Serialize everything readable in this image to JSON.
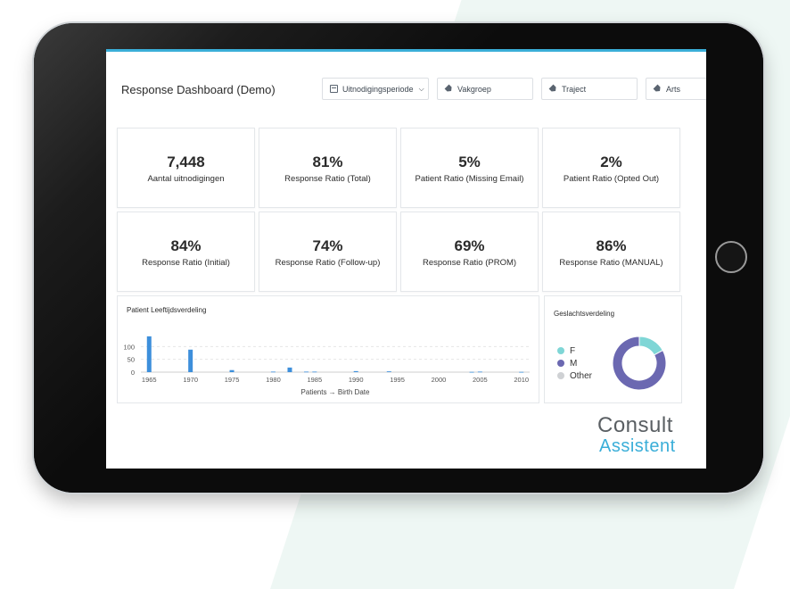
{
  "header": {
    "title": "Response Dashboard (Demo)"
  },
  "filters": [
    {
      "label": "Uitnodigingsperiode",
      "icon": "calendar-icon"
    },
    {
      "label": "Vakgroep",
      "icon": "tag-icon"
    },
    {
      "label": "Traject",
      "icon": "tag-icon"
    },
    {
      "label": "Arts",
      "icon": "tag-icon"
    }
  ],
  "kpis": [
    {
      "value": "7,448",
      "label": "Aantal uitnodigingen"
    },
    {
      "value": "81%",
      "label": "Response Ratio (Total)"
    },
    {
      "value": "5%",
      "label": "Patient Ratio (Missing Email)"
    },
    {
      "value": "2%",
      "label": "Patient Ratio (Opted Out)"
    },
    {
      "value": "84%",
      "label": "Response Ratio (Initial)"
    },
    {
      "value": "74%",
      "label": "Response Ratio (Follow-up)"
    },
    {
      "value": "69%",
      "label": "Response Ratio (PROM)"
    },
    {
      "value": "86%",
      "label": "Response Ratio (MANUAL)"
    }
  ],
  "chart_data": [
    {
      "type": "bar",
      "title": "Patient Leeftijdsverdeling",
      "xlabel": "Patients → Birth Date",
      "ylabel": "",
      "x": [
        1965,
        1970,
        1975,
        1980,
        1982,
        1984,
        1985,
        1990,
        1994,
        2004,
        2005,
        2010
      ],
      "values": [
        140,
        88,
        8,
        2,
        18,
        2,
        2,
        4,
        3,
        1,
        2,
        1
      ],
      "xticks": [
        1965,
        1970,
        1975,
        1980,
        1985,
        1990,
        1995,
        2000,
        2005,
        2010
      ],
      "yticks": [
        0,
        50,
        100
      ],
      "xlim": [
        1964,
        2011
      ],
      "ylim": [
        0,
        150
      ],
      "grid": true,
      "color": "#3d8fdb"
    },
    {
      "type": "pie",
      "title": "Geslachtsverdeling",
      "categories": [
        "F",
        "M",
        "Other"
      ],
      "values": [
        17,
        83,
        0
      ],
      "colors": [
        "#7fd6d6",
        "#6b68b1",
        "#cfd1d4"
      ],
      "donut": true,
      "legend": "left"
    }
  ],
  "brand": {
    "line1": "Consult",
    "line2": "Assistent",
    "accent": "#3aaed8"
  }
}
